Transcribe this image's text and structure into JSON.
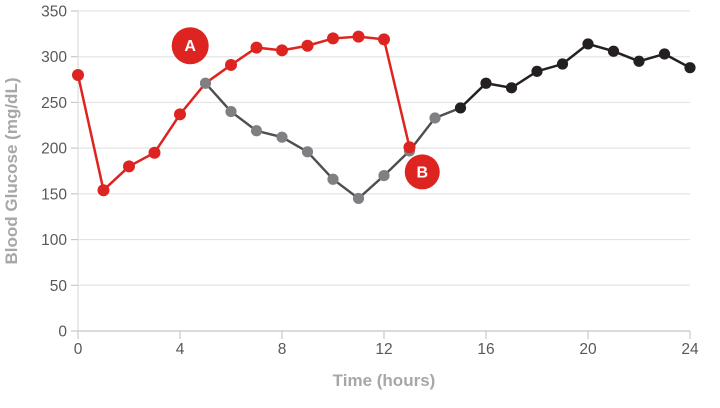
{
  "chart_data": {
    "type": "line",
    "title": "",
    "xlabel": "Time (hours)",
    "ylabel": "Blood Glucose (mg/dL)",
    "xlim": [
      0,
      24
    ],
    "ylim": [
      0,
      350
    ],
    "xticks": [
      0,
      4,
      8,
      12,
      16,
      20,
      24
    ],
    "yticks": [
      0,
      50,
      100,
      150,
      200,
      250,
      300,
      350
    ],
    "grid": "horizontal",
    "legend": "none",
    "series": [
      {
        "name": "A",
        "line_color": "#dd2420",
        "marker_color": "#dd2420",
        "x": [
          0,
          1,
          2,
          3,
          4,
          5,
          6,
          7,
          8,
          9,
          10,
          11,
          12,
          13
        ],
        "values": [
          280,
          154,
          180,
          195,
          237,
          271,
          291,
          310,
          307,
          312,
          320,
          322,
          319,
          201
        ],
        "hidden_marker_x": [
          5
        ]
      },
      {
        "name": "B",
        "line_color_early": "#4e4f51",
        "line_color_late": "#242021",
        "marker_color_early": "#7e8083",
        "marker_color_late": "#242021",
        "late_from_x": 15,
        "x": [
          5,
          6,
          7,
          8,
          9,
          10,
          11,
          12,
          13,
          14,
          15,
          16,
          17,
          18,
          19,
          20,
          21,
          22,
          23,
          24
        ],
        "values": [
          271,
          240,
          219,
          212,
          196,
          166,
          145,
          170,
          197,
          233,
          244,
          271,
          266,
          284,
          292,
          314,
          306,
          295,
          303,
          288
        ]
      }
    ],
    "annotations": [
      {
        "label": "A",
        "x": 4.4,
        "y": 312,
        "radius": 18.5,
        "fill": "#dd2420",
        "text_color": "#ffffff"
      },
      {
        "label": "B",
        "x": 13.5,
        "y": 174,
        "radius": 17.5,
        "fill": "#dd2420",
        "text_color": "#ffffff"
      }
    ]
  },
  "colors": {
    "background": "#ffffff",
    "gridline": "#e4e4e4",
    "axis_line": "#c9c9c9",
    "y_axis_line": "#dcdcdc",
    "tick_label": "#58585a",
    "axis_title": "#a7a7a9"
  }
}
